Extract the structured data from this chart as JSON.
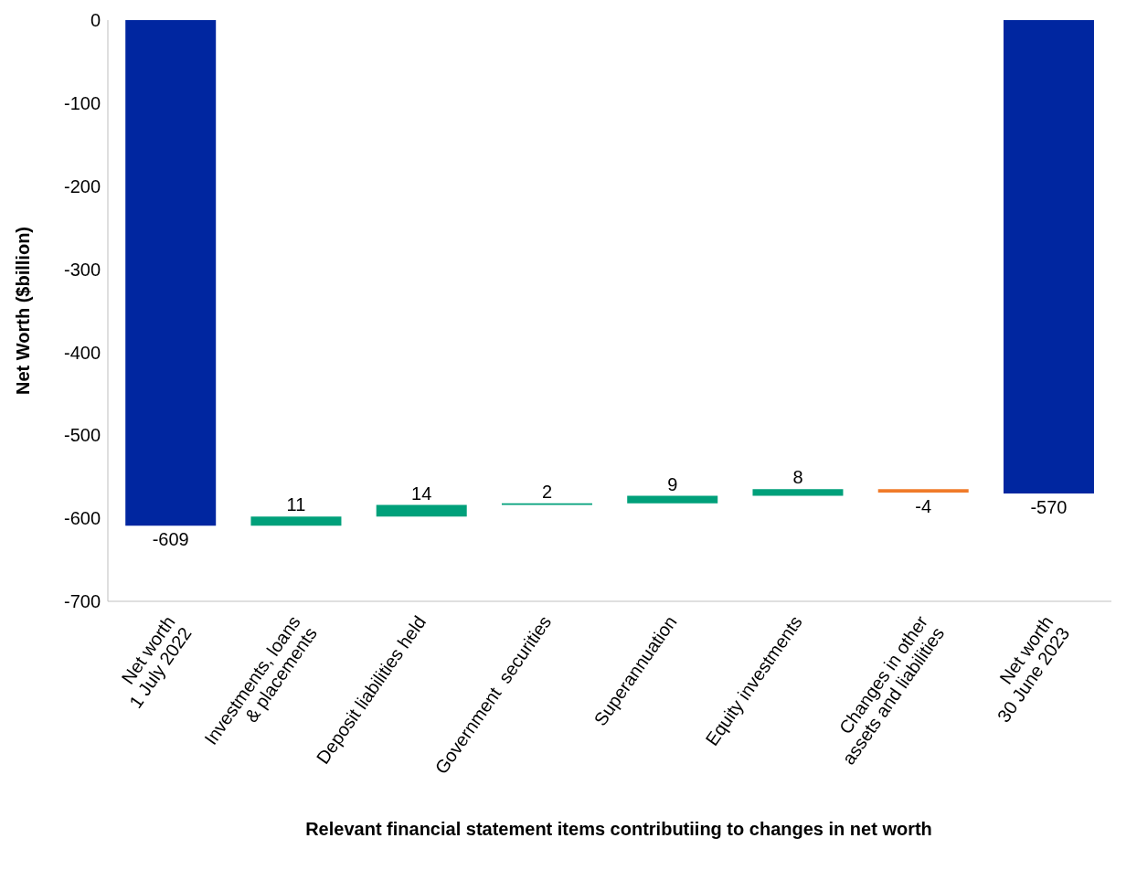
{
  "chart_data": {
    "type": "bar",
    "xlabel": "Relevant financial statement items contributiing to changes in net worth",
    "ylabel": "Net Worth ($billion)",
    "categories": [
      "Net worth\n1 July 2022",
      "Investments, loans\n& placements",
      "Deposit liabilities held",
      "Government  securities",
      "Superannuation",
      "Equity investments",
      "Changes in other\nassets and liabilities",
      "Net worth\n30 June 2023"
    ],
    "values": [
      -609,
      11,
      14,
      2,
      9,
      8,
      -4,
      -570
    ],
    "base": [
      0,
      -609,
      -598,
      -584,
      -582,
      -573,
      -565,
      0
    ],
    "colors": [
      "#0026a0",
      "#00a07a",
      "#00a07a",
      "#00a07a",
      "#00a07a",
      "#00a07a",
      "#f07b2a",
      "#0026a0"
    ],
    "ylim": [
      -700,
      0
    ],
    "yticks": [
      0,
      -100,
      -200,
      -300,
      -400,
      -500,
      -600,
      -700
    ],
    "data_labels": true
  }
}
